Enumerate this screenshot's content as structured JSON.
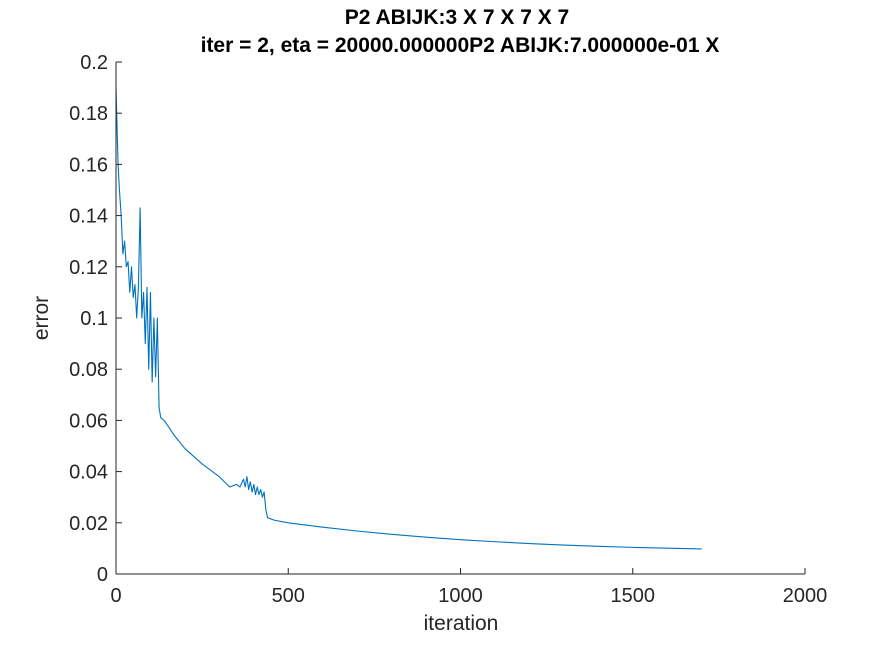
{
  "chart_data": {
    "type": "line",
    "title": "P2 ABIJK:3 X 7 X 7 X 7",
    "subtitle": "iter = 2, eta = 20000.000000P2 ABIJK:7.000000e-01 X",
    "xlabel": "iteration",
    "ylabel": "error",
    "xlim": [
      0,
      2000
    ],
    "ylim": [
      0,
      0.2
    ],
    "xticks": [
      "0",
      "500",
      "1000",
      "1500",
      "2000"
    ],
    "yticks": [
      "0",
      "0.02",
      "0.04",
      "0.06",
      "0.08",
      "0.1",
      "0.12",
      "0.14",
      "0.16",
      "0.18",
      "0.2"
    ],
    "grid": false,
    "legend": "none",
    "line_color": "#0072bd",
    "series": [
      {
        "x": [
          0,
          3,
          6,
          10,
          15,
          20,
          25,
          30,
          35,
          40,
          45,
          50,
          55,
          60,
          65,
          70,
          75,
          80,
          85,
          90,
          95,
          100,
          105,
          110,
          115,
          120,
          125,
          130,
          140,
          150,
          170,
          200,
          250,
          300,
          330,
          350,
          360,
          370,
          375,
          380,
          385,
          390,
          395,
          400,
          405,
          410,
          415,
          420,
          425,
          430,
          435,
          440,
          450,
          460,
          500,
          600,
          700,
          800,
          900,
          1000,
          1100,
          1200,
          1300,
          1400,
          1500,
          1600,
          1700
        ],
        "y": [
          0.19,
          0.175,
          0.16,
          0.15,
          0.14,
          0.125,
          0.13,
          0.12,
          0.122,
          0.11,
          0.12,
          0.108,
          0.113,
          0.1,
          0.112,
          0.143,
          0.1,
          0.11,
          0.09,
          0.112,
          0.08,
          0.11,
          0.075,
          0.1,
          0.077,
          0.1,
          0.065,
          0.061,
          0.06,
          0.058,
          0.054,
          0.049,
          0.043,
          0.038,
          0.034,
          0.035,
          0.034,
          0.037,
          0.034,
          0.038,
          0.033,
          0.036,
          0.032,
          0.035,
          0.031,
          0.034,
          0.031,
          0.033,
          0.03,
          0.032,
          0.025,
          0.022,
          0.0215,
          0.021,
          0.02,
          0.0183,
          0.0168,
          0.0155,
          0.0144,
          0.0134,
          0.0126,
          0.0119,
          0.0113,
          0.0108,
          0.0104,
          0.0101,
          0.0098
        ]
      }
    ]
  }
}
